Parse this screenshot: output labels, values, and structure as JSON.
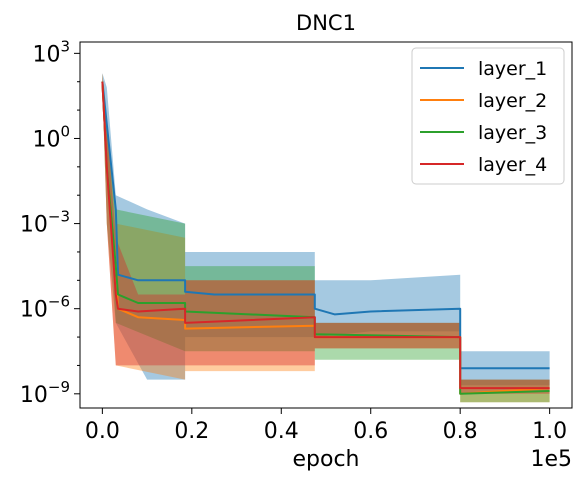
{
  "chart_data": {
    "type": "line",
    "title": "DNC1",
    "xlabel": "epoch",
    "ylabel": "",
    "x_offset_label": "1e5",
    "xlim": [
      -5000,
      105000
    ],
    "ylim_log10": [
      -9.5,
      3.4
    ],
    "y_scale": "log",
    "grid": false,
    "legend_position": "top-right",
    "x_ticks": [
      {
        "v": 0.0,
        "label": "0.0"
      },
      {
        "v": 20000,
        "label": "0.2"
      },
      {
        "v": 40000,
        "label": "0.4"
      },
      {
        "v": 60000,
        "label": "0.6"
      },
      {
        "v": 80000,
        "label": "0.8"
      },
      {
        "v": 100000,
        "label": "1.0"
      }
    ],
    "y_ticks": [
      {
        "e": 3,
        "base": "10",
        "exp": "3"
      },
      {
        "e": 0,
        "base": "10",
        "exp": "0"
      },
      {
        "e": -3,
        "base": "10",
        "exp": "−3"
      },
      {
        "e": -6,
        "base": "10",
        "exp": "−6"
      },
      {
        "e": -9,
        "base": "10",
        "exp": "−9"
      }
    ],
    "series": [
      {
        "name": "layer_1",
        "color": "#1f77b4",
        "points": [
          [
            0,
            2.0
          ],
          [
            1000,
            0.5
          ],
          [
            3000,
            -2.5
          ],
          [
            3500,
            -4.8
          ],
          [
            8000,
            -5.0
          ],
          [
            18500,
            -5.0
          ],
          [
            18500,
            -5.4
          ],
          [
            25000,
            -5.5
          ],
          [
            47500,
            -5.5
          ],
          [
            47500,
            -6.0
          ],
          [
            52000,
            -6.2
          ],
          [
            60000,
            -6.1
          ],
          [
            80000,
            -6.0
          ],
          [
            80000,
            -8.1
          ],
          [
            100000,
            -8.1
          ]
        ],
        "band": [
          [
            0,
            2.3,
            1.8
          ],
          [
            1000,
            1.8,
            -0.5
          ],
          [
            3000,
            -2.0,
            -6.5
          ],
          [
            10000,
            -2.5,
            -8.5
          ],
          [
            18500,
            -3.0,
            -8.5
          ],
          [
            18500,
            -4.0,
            -7.0
          ],
          [
            47500,
            -4.0,
            -7.0
          ],
          [
            47500,
            -5.0,
            -7.0
          ],
          [
            60000,
            -5.0,
            -6.8
          ],
          [
            80000,
            -4.8,
            -6.8
          ],
          [
            80000,
            -7.5,
            -8.7
          ],
          [
            100000,
            -7.5,
            -8.7
          ]
        ]
      },
      {
        "name": "layer_2",
        "color": "#ff7f0e",
        "points": [
          [
            0,
            2.0
          ],
          [
            1000,
            -1.0
          ],
          [
            3000,
            -4.5
          ],
          [
            3500,
            -6.0
          ],
          [
            8000,
            -6.3
          ],
          [
            18500,
            -6.4
          ],
          [
            18500,
            -6.7
          ],
          [
            47500,
            -6.6
          ],
          [
            47500,
            -7.0
          ],
          [
            80000,
            -7.0
          ],
          [
            80000,
            -9.0
          ],
          [
            100000,
            -8.8
          ]
        ],
        "band": [
          [
            0,
            2.3,
            1.8
          ],
          [
            1000,
            0.5,
            -3.0
          ],
          [
            3000,
            -3.0,
            -8.0
          ],
          [
            18500,
            -3.5,
            -8.5
          ],
          [
            18500,
            -5.0,
            -8.2
          ],
          [
            47500,
            -5.0,
            -8.2
          ],
          [
            47500,
            -6.5,
            -7.4
          ],
          [
            80000,
            -6.5,
            -7.4
          ],
          [
            80000,
            -8.5,
            -9.3
          ],
          [
            100000,
            -8.5,
            -9.3
          ]
        ]
      },
      {
        "name": "layer_3",
        "color": "#2ca02c",
        "points": [
          [
            0,
            2.0
          ],
          [
            1000,
            -1.0
          ],
          [
            3000,
            -4.5
          ],
          [
            3500,
            -5.5
          ],
          [
            8000,
            -5.8
          ],
          [
            18500,
            -5.8
          ],
          [
            18500,
            -6.1
          ],
          [
            47500,
            -6.3
          ],
          [
            47500,
            -6.9
          ],
          [
            80000,
            -7.0
          ],
          [
            80000,
            -9.0
          ],
          [
            100000,
            -8.9
          ]
        ],
        "band": [
          [
            0,
            2.3,
            1.8
          ],
          [
            1000,
            0.5,
            -3.0
          ],
          [
            3000,
            -2.5,
            -6.5
          ],
          [
            18500,
            -3.0,
            -7.5
          ],
          [
            18500,
            -4.5,
            -7.5
          ],
          [
            47500,
            -4.5,
            -7.5
          ],
          [
            47500,
            -6.5,
            -7.8
          ],
          [
            80000,
            -6.5,
            -7.8
          ],
          [
            80000,
            -8.5,
            -9.3
          ],
          [
            100000,
            -8.5,
            -9.3
          ]
        ]
      },
      {
        "name": "layer_4",
        "color": "#d62728",
        "points": [
          [
            0,
            2.0
          ],
          [
            1000,
            -1.0
          ],
          [
            3000,
            -5.5
          ],
          [
            3500,
            -6.0
          ],
          [
            8000,
            -6.1
          ],
          [
            18500,
            -6.0
          ],
          [
            18500,
            -6.5
          ],
          [
            47500,
            -6.3
          ],
          [
            47500,
            -7.0
          ],
          [
            80000,
            -7.0
          ],
          [
            80000,
            -8.8
          ],
          [
            100000,
            -8.8
          ]
        ],
        "band": [
          [
            0,
            2.3,
            1.8
          ],
          [
            1000,
            0.5,
            -3.0
          ],
          [
            3000,
            -3.5,
            -8.0
          ],
          [
            8000,
            -5.5,
            -8.0
          ],
          [
            18500,
            -5.5,
            -8.0
          ],
          [
            18500,
            -5.0,
            -8.0
          ],
          [
            47500,
            -5.0,
            -8.0
          ],
          [
            47500,
            -6.5,
            -7.4
          ],
          [
            80000,
            -6.5,
            -7.4
          ],
          [
            80000,
            -8.5,
            -9.0
          ],
          [
            100000,
            -8.5,
            -9.0
          ]
        ]
      }
    ]
  }
}
